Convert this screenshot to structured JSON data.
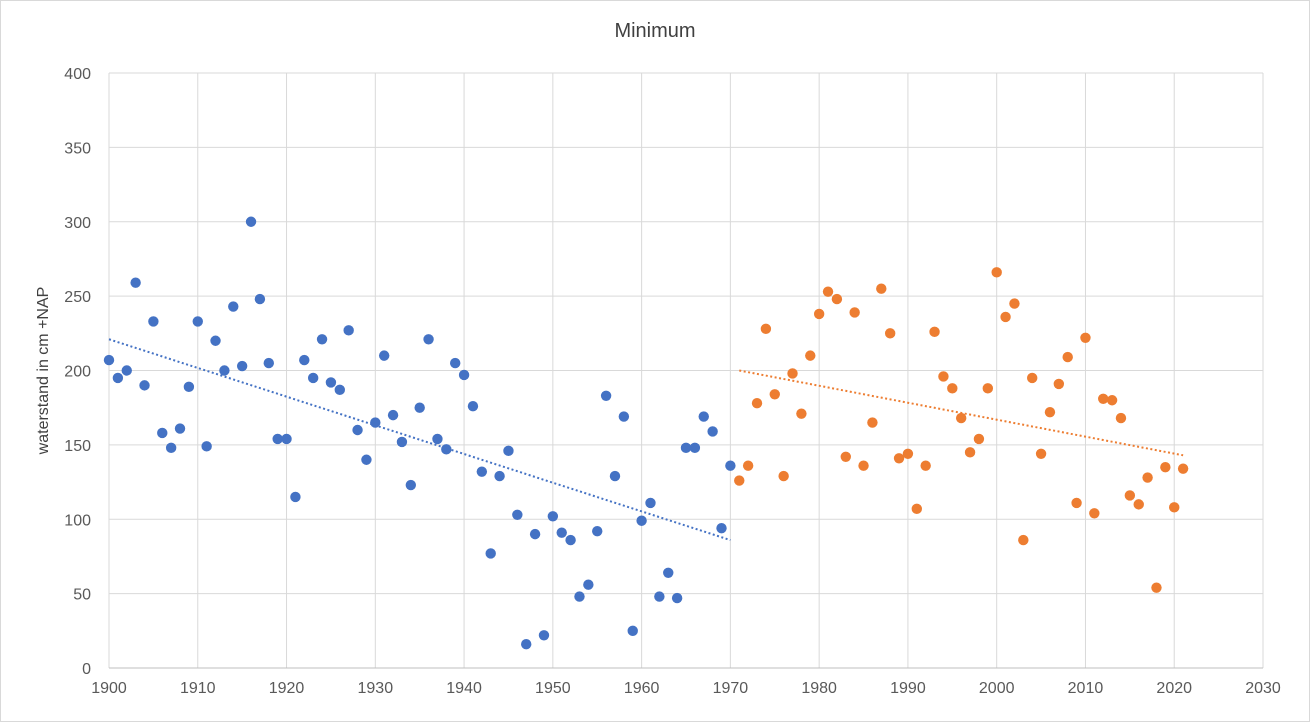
{
  "chart_data": {
    "type": "scatter",
    "title": "Minimum",
    "xlabel": "",
    "ylabel": "waterstand in cm +NAP",
    "xlim": [
      1900,
      2030
    ],
    "ylim": [
      0,
      400
    ],
    "x_ticks": [
      1900,
      1910,
      1920,
      1930,
      1940,
      1950,
      1960,
      1970,
      1980,
      1990,
      2000,
      2010,
      2020,
      2030
    ],
    "y_ticks": [
      0,
      50,
      100,
      150,
      200,
      250,
      300,
      350,
      400
    ],
    "grid": true,
    "series": [
      {
        "color": "#4472c4",
        "points": [
          [
            1900,
            207
          ],
          [
            1901,
            195
          ],
          [
            1902,
            200
          ],
          [
            1903,
            259
          ],
          [
            1904,
            190
          ],
          [
            1905,
            233
          ],
          [
            1906,
            158
          ],
          [
            1907,
            148
          ],
          [
            1908,
            161
          ],
          [
            1909,
            189
          ],
          [
            1910,
            233
          ],
          [
            1911,
            149
          ],
          [
            1912,
            220
          ],
          [
            1913,
            200
          ],
          [
            1914,
            243
          ],
          [
            1915,
            203
          ],
          [
            1916,
            300
          ],
          [
            1917,
            248
          ],
          [
            1918,
            205
          ],
          [
            1919,
            154
          ],
          [
            1920,
            154
          ],
          [
            1921,
            115
          ],
          [
            1922,
            207
          ],
          [
            1923,
            195
          ],
          [
            1924,
            221
          ],
          [
            1925,
            192
          ],
          [
            1926,
            187
          ],
          [
            1927,
            227
          ],
          [
            1928,
            160
          ],
          [
            1929,
            140
          ],
          [
            1930,
            165
          ],
          [
            1931,
            210
          ],
          [
            1932,
            170
          ],
          [
            1933,
            152
          ],
          [
            1934,
            123
          ],
          [
            1935,
            175
          ],
          [
            1936,
            221
          ],
          [
            1937,
            154
          ],
          [
            1938,
            147
          ],
          [
            1939,
            205
          ],
          [
            1940,
            197
          ],
          [
            1941,
            176
          ],
          [
            1942,
            132
          ],
          [
            1943,
            77
          ],
          [
            1944,
            129
          ],
          [
            1945,
            146
          ],
          [
            1946,
            103
          ],
          [
            1947,
            16
          ],
          [
            1948,
            90
          ],
          [
            1949,
            22
          ],
          [
            1950,
            102
          ],
          [
            1951,
            91
          ],
          [
            1952,
            86
          ],
          [
            1953,
            48
          ],
          [
            1954,
            56
          ],
          [
            1955,
            92
          ],
          [
            1956,
            183
          ],
          [
            1957,
            129
          ],
          [
            1958,
            169
          ],
          [
            1959,
            25
          ],
          [
            1960,
            99
          ],
          [
            1961,
            111
          ],
          [
            1962,
            48
          ],
          [
            1963,
            64
          ],
          [
            1964,
            47
          ],
          [
            1965,
            148
          ],
          [
            1966,
            148
          ],
          [
            1967,
            169
          ],
          [
            1968,
            159
          ],
          [
            1969,
            94
          ],
          [
            1970,
            136
          ]
        ],
        "trendline": {
          "style": "dotted",
          "from": [
            1900,
            221
          ],
          "to": [
            1970,
            86
          ]
        }
      },
      {
        "color": "#ed7d31",
        "points": [
          [
            1971,
            126
          ],
          [
            1972,
            136
          ],
          [
            1973,
            178
          ],
          [
            1974,
            228
          ],
          [
            1975,
            184
          ],
          [
            1976,
            129
          ],
          [
            1977,
            198
          ],
          [
            1978,
            171
          ],
          [
            1979,
            210
          ],
          [
            1980,
            238
          ],
          [
            1981,
            253
          ],
          [
            1982,
            248
          ],
          [
            1983,
            142
          ],
          [
            1984,
            239
          ],
          [
            1985,
            136
          ],
          [
            1986,
            165
          ],
          [
            1987,
            255
          ],
          [
            1988,
            225
          ],
          [
            1989,
            141
          ],
          [
            1990,
            144
          ],
          [
            1991,
            107
          ],
          [
            1992,
            136
          ],
          [
            1993,
            226
          ],
          [
            1994,
            196
          ],
          [
            1995,
            188
          ],
          [
            1996,
            168
          ],
          [
            1997,
            145
          ],
          [
            1998,
            154
          ],
          [
            1999,
            188
          ],
          [
            2000,
            266
          ],
          [
            2001,
            236
          ],
          [
            2002,
            245
          ],
          [
            2003,
            86
          ],
          [
            2004,
            195
          ],
          [
            2005,
            144
          ],
          [
            2006,
            172
          ],
          [
            2007,
            191
          ],
          [
            2008,
            209
          ],
          [
            2009,
            111
          ],
          [
            2010,
            222
          ],
          [
            2011,
            104
          ],
          [
            2012,
            181
          ],
          [
            2013,
            180
          ],
          [
            2014,
            168
          ],
          [
            2015,
            116
          ],
          [
            2016,
            110
          ],
          [
            2017,
            128
          ],
          [
            2018,
            54
          ],
          [
            2019,
            135
          ],
          [
            2020,
            108
          ],
          [
            2021,
            134
          ]
        ],
        "trendline": {
          "style": "dotted",
          "from": [
            1971,
            200
          ],
          "to": [
            2021,
            143
          ]
        }
      }
    ]
  }
}
